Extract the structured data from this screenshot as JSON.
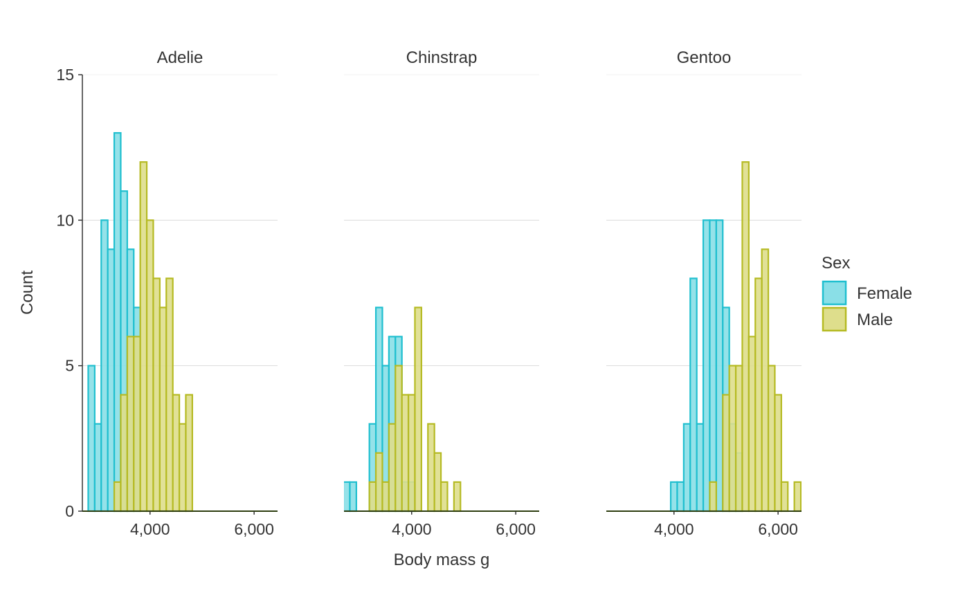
{
  "chart_data": {
    "type": "bar",
    "xlabel": "Body mass g",
    "ylabel": "Count",
    "ylim": [
      0,
      15
    ],
    "yticks": [
      0,
      5,
      10,
      15
    ],
    "xlim": [
      2700,
      6450
    ],
    "xticks": [
      4000,
      6000
    ],
    "xtick_labels": [
      "4,000",
      "6,000"
    ],
    "bin_width": 125,
    "legend": {
      "title": "Sex",
      "position": "right",
      "entries": [
        {
          "name": "Female",
          "fill": "#8ADFE7",
          "stroke": "#1FBFCF"
        },
        {
          "name": "Male",
          "fill": "#DEDE8C",
          "stroke": "#B5BA22"
        }
      ]
    },
    "grid": "horizontal",
    "panels": [
      {
        "title": "Adelie",
        "series": [
          {
            "name": "Female",
            "x": [
              2875,
              3000,
              3125,
              3250,
              3375,
              3500,
              3625,
              3750
            ],
            "values": [
              5,
              3,
              10,
              9,
              13,
              11,
              9,
              7
            ]
          },
          {
            "name": "Male",
            "x": [
              3375,
              3500,
              3625,
              3750,
              3875,
              4000,
              4125,
              4250,
              4375,
              4500,
              4625,
              4750
            ],
            "values": [
              1,
              4,
              6,
              6,
              12,
              10,
              8,
              7,
              8,
              4,
              3,
              4
            ]
          }
        ]
      },
      {
        "title": "Chinstrap",
        "series": [
          {
            "name": "Female",
            "x": [
              2750,
              2875,
              3250,
              3375,
              3500,
              3625,
              3750,
              3875,
              4000
            ],
            "values": [
              1,
              1,
              3,
              7,
              5,
              6,
              6,
              1,
              1
            ]
          },
          {
            "name": "Male",
            "x": [
              3250,
              3375,
              3500,
              3625,
              3750,
              3875,
              4000,
              4125,
              4375,
              4500,
              4625,
              4875
            ],
            "values": [
              1,
              2,
              1,
              3,
              5,
              4,
              4,
              7,
              3,
              2,
              1,
              1
            ]
          }
        ]
      },
      {
        "title": "Gentoo",
        "series": [
          {
            "name": "Female",
            "x": [
              4000,
              4125,
              4250,
              4375,
              4500,
              4625,
              4750,
              4875,
              5000,
              5125,
              5250
            ],
            "values": [
              1,
              1,
              3,
              8,
              3,
              10,
              10,
              10,
              7,
              3,
              2
            ]
          },
          {
            "name": "Male",
            "x": [
              4750,
              5000,
              5125,
              5250,
              5375,
              5500,
              5625,
              5750,
              5875,
              6000,
              6125,
              6375
            ],
            "values": [
              1,
              4,
              5,
              5,
              12,
              6,
              8,
              9,
              5,
              4,
              1,
              1
            ]
          }
        ]
      }
    ]
  }
}
